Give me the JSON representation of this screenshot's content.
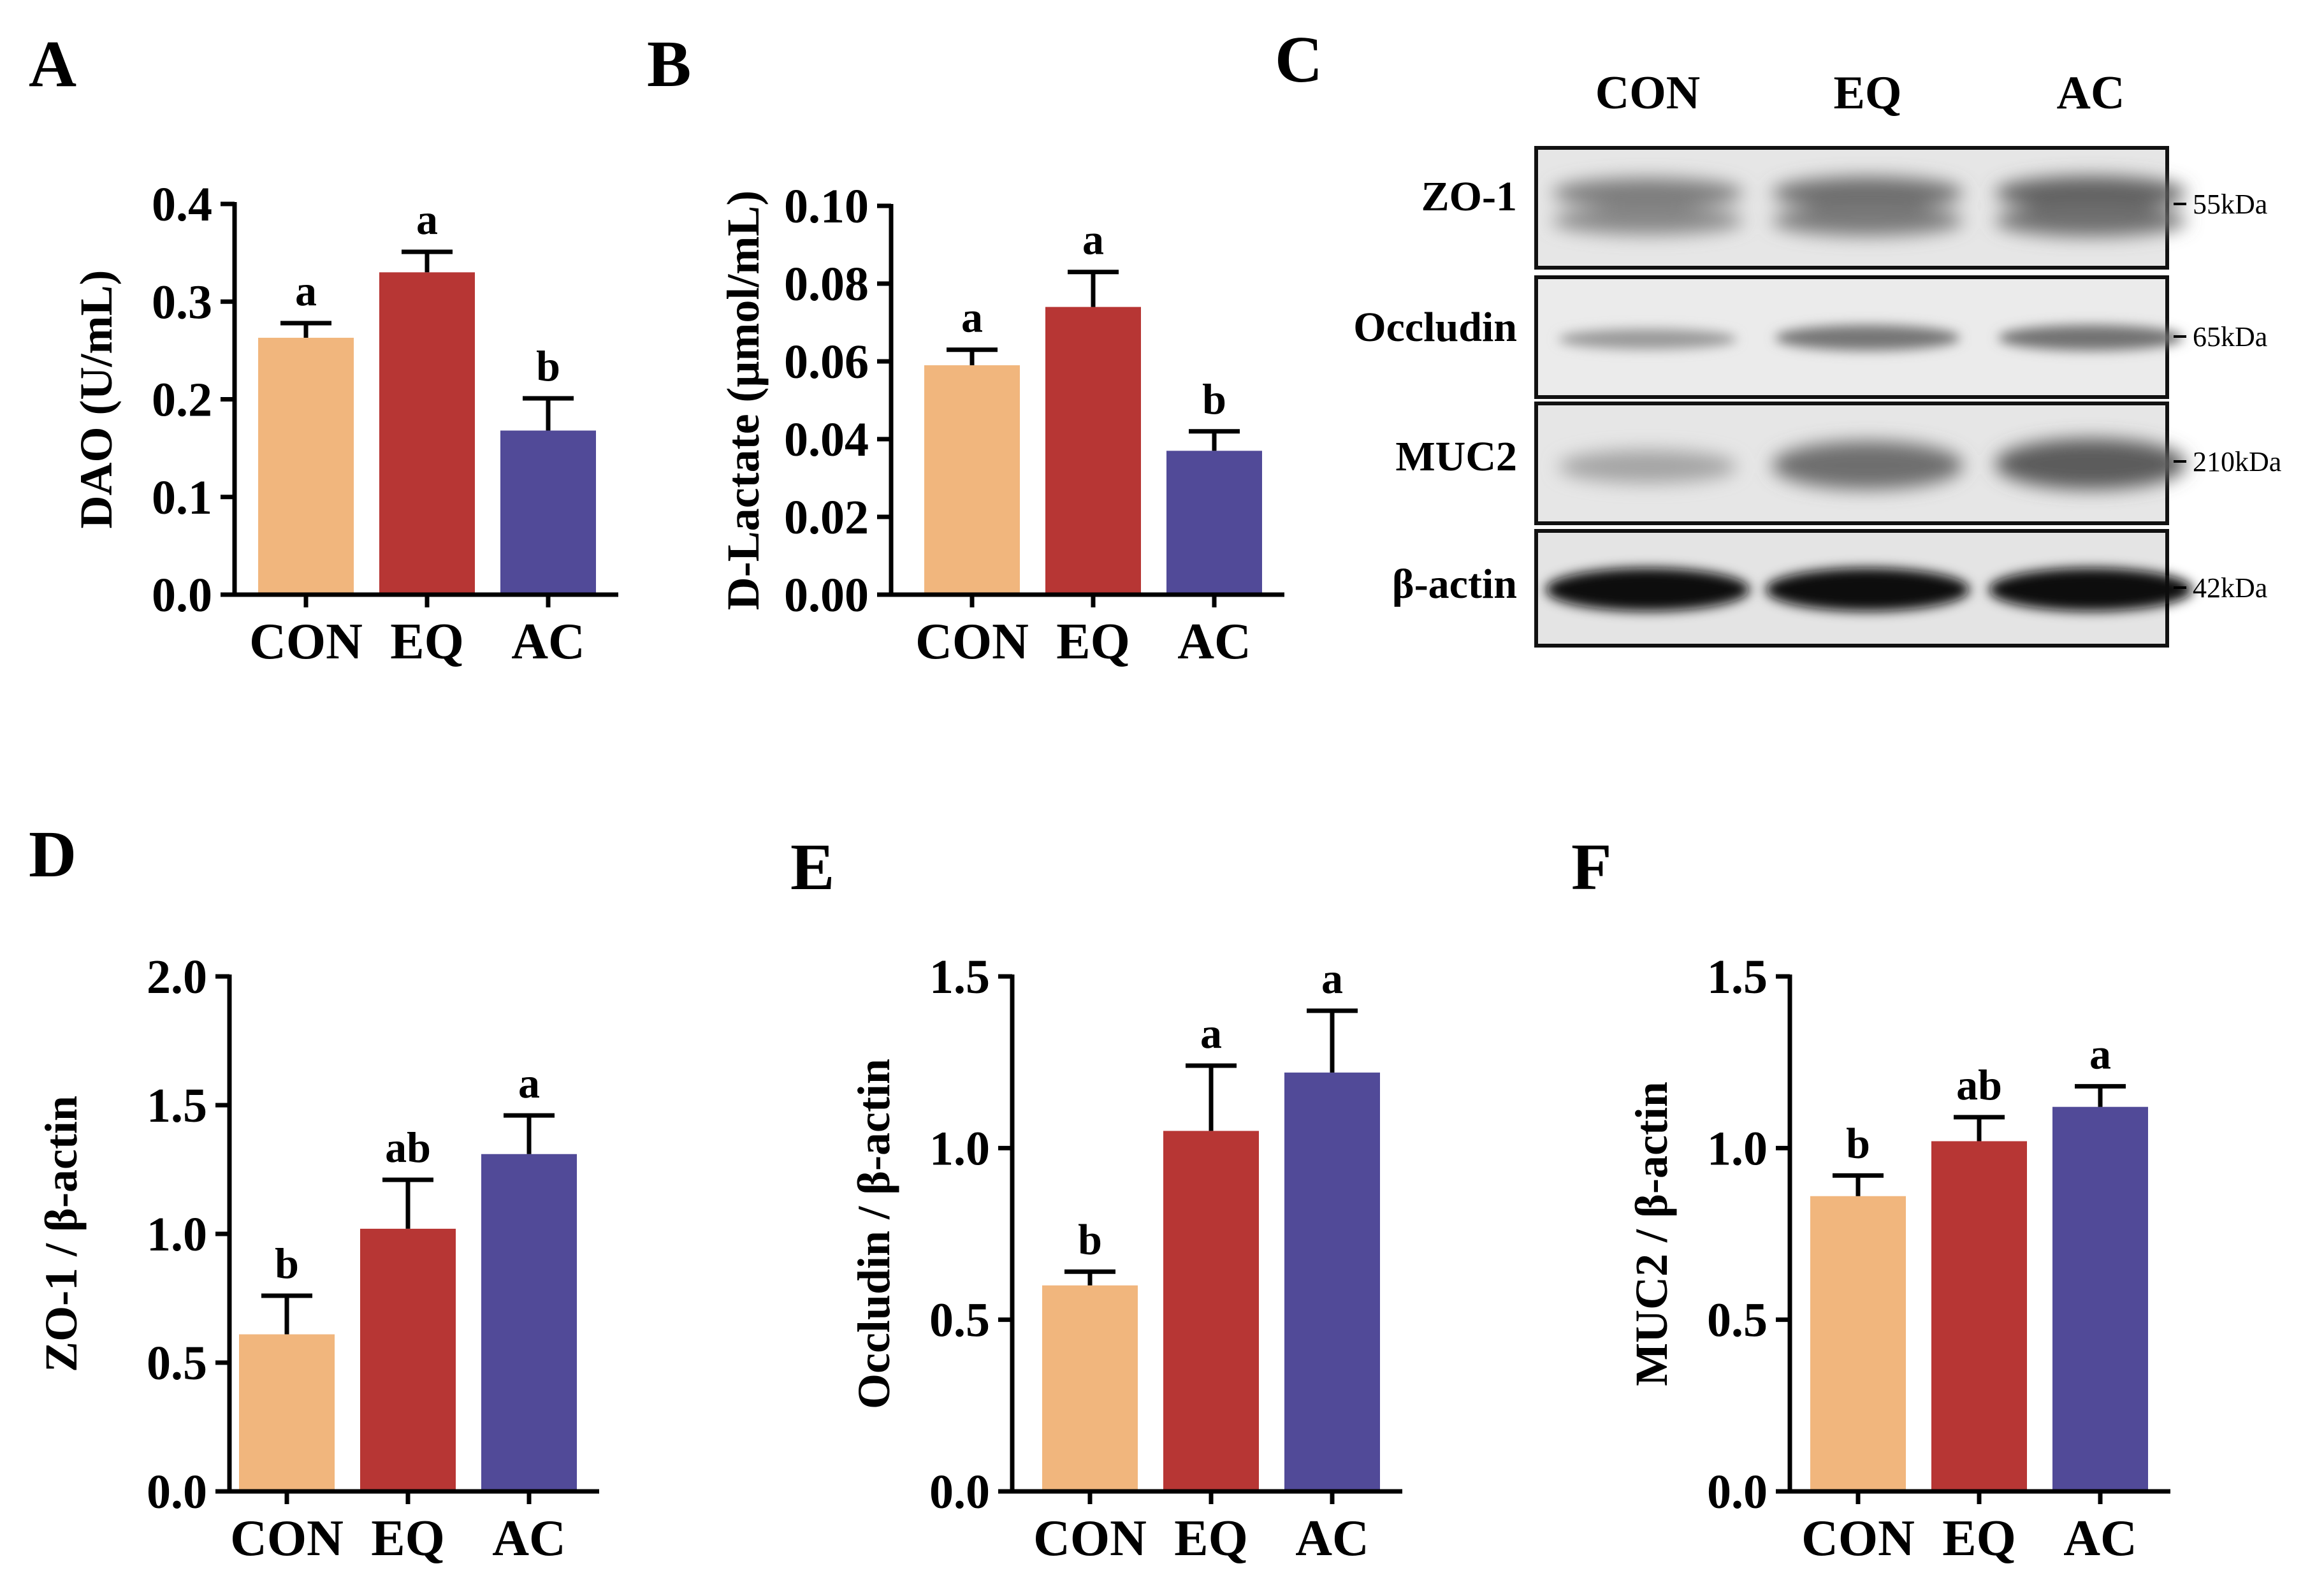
{
  "colors": {
    "CON": "#f1b67d",
    "EQ": "#b73634",
    "AC": "#514a98"
  },
  "chart_data": [
    {
      "id": "A",
      "panel_label": "A",
      "type": "bar",
      "categories": [
        "CON",
        "EQ",
        "AC"
      ],
      "values": [
        0.263,
        0.33,
        0.168
      ],
      "errors": [
        0.015,
        0.021,
        0.033
      ],
      "significance": [
        "a",
        "a",
        "b"
      ],
      "ylabel": "DAO (U/mL)",
      "ylim": [
        0,
        0.4
      ],
      "yticks": [
        "0.0",
        "0.1",
        "0.2",
        "0.3",
        "0.4"
      ]
    },
    {
      "id": "B",
      "panel_label": "B",
      "type": "bar",
      "categories": [
        "CON",
        "EQ",
        "AC"
      ],
      "values": [
        0.059,
        0.074,
        0.037
      ],
      "errors": [
        0.004,
        0.009,
        0.005
      ],
      "significance": [
        "a",
        "a",
        "b"
      ],
      "ylabel": "D-Lactate (μmol/mL)",
      "ylim": [
        0,
        0.1
      ],
      "yticks": [
        "0.00",
        "0.02",
        "0.04",
        "0.06",
        "0.08",
        "0.10"
      ]
    },
    {
      "id": "D",
      "panel_label": "D",
      "type": "bar",
      "categories": [
        "CON",
        "EQ",
        "AC"
      ],
      "values": [
        0.61,
        1.02,
        1.31
      ],
      "errors": [
        0.15,
        0.19,
        0.15
      ],
      "significance": [
        "b",
        "ab",
        "a"
      ],
      "ylabel": "ZO-1 / β-actin",
      "ylim": [
        0,
        2.0
      ],
      "yticks": [
        "0.0",
        "0.5",
        "1.0",
        "1.5",
        "2.0"
      ]
    },
    {
      "id": "E",
      "panel_label": "E",
      "type": "bar",
      "categories": [
        "CON",
        "EQ",
        "AC"
      ],
      "values": [
        0.6,
        1.05,
        1.22
      ],
      "errors": [
        0.04,
        0.19,
        0.18
      ],
      "significance": [
        "b",
        "a",
        "a"
      ],
      "ylabel": "Occludin / β-actin",
      "ylim": [
        0,
        1.5
      ],
      "yticks": [
        "0.0",
        "0.5",
        "1.0",
        "1.5"
      ]
    },
    {
      "id": "F",
      "panel_label": "F",
      "type": "bar",
      "categories": [
        "CON",
        "EQ",
        "AC"
      ],
      "values": [
        0.86,
        1.02,
        1.12
      ],
      "errors": [
        0.06,
        0.07,
        0.06
      ],
      "significance": [
        "b",
        "ab",
        "a"
      ],
      "ylabel": "MUC2 / β-actin",
      "ylim": [
        0,
        1.5
      ],
      "yticks": [
        "0.0",
        "0.5",
        "1.0",
        "1.5"
      ]
    }
  ],
  "western_blot": {
    "panel_label": "C",
    "lanes": [
      "CON",
      "EQ",
      "AC"
    ],
    "rows": [
      {
        "name": "ZO-1",
        "kda": "55kDa"
      },
      {
        "name": "Occludin",
        "kda": "65kDa"
      },
      {
        "name": "MUC2",
        "kda": "210kDa"
      },
      {
        "name": "β-actin",
        "kda": "42kDa"
      }
    ]
  }
}
